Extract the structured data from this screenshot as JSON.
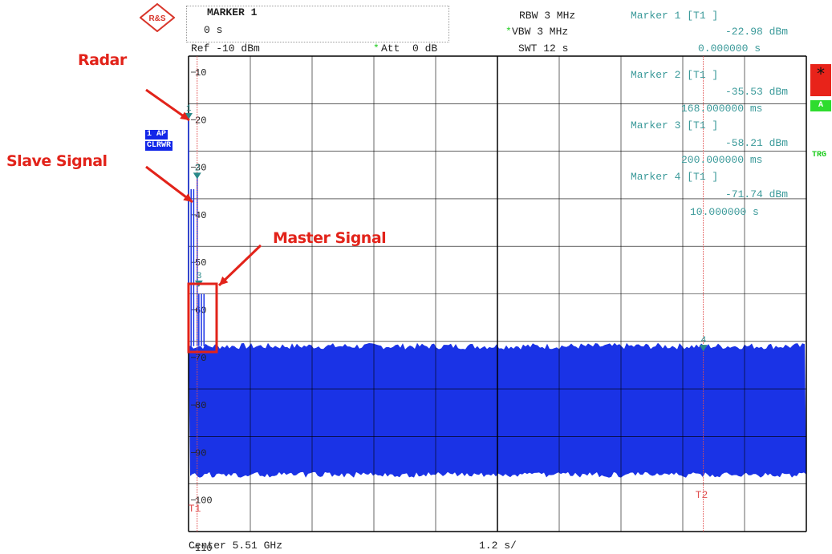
{
  "logo": {
    "text": "R&S",
    "icon": "rohde-schwarz-logo"
  },
  "marker_box": {
    "title": "MARKER 1",
    "value": "0 s"
  },
  "settings": {
    "rbw": "RBW 3 MHz",
    "vbw_star": "*",
    "vbw": "VBW 3 MHz",
    "swt": "SWT 12 s",
    "ref": "Ref -10 dBm",
    "att_star": "*",
    "att": "Att  0 dB"
  },
  "marker1_readout": {
    "label": "Marker 1 [T1 ]",
    "level": "-22.98 dBm",
    "time": "0.000000 s"
  },
  "marker_table": [
    {
      "label": "Marker 2 [T1 ]",
      "level": "-35.53 dBm",
      "time": "168.000000 ms"
    },
    {
      "label": "Marker 3 [T1 ]",
      "level": "-58.21 dBm",
      "time": "200.000000 ms"
    },
    {
      "label": "Marker 4 [T1 ]",
      "level": "-71.74 dBm",
      "time": "10.000000 s"
    }
  ],
  "side_badges": {
    "trace": "1 AP",
    "mode": "CLRWR"
  },
  "right_indicators": {
    "star": "*",
    "a": "A",
    "trg": "TRG"
  },
  "callouts": {
    "radar": "Radar",
    "slave": "Slave Signal",
    "master": "Master Signal"
  },
  "footer": {
    "center": "Center 5.51 GHz",
    "div": "1.2 s/"
  },
  "colors": {
    "trace": "#1a33e6",
    "marker_text": "#3b9a9a",
    "callout": "#e2231a",
    "marker_line": "#e05050",
    "grid": "#000000"
  },
  "chart_data": {
    "type": "line",
    "ylim": [
      -110,
      -10
    ],
    "xlim": [
      0,
      12
    ],
    "y_ticks": [
      "10",
      "20",
      "30",
      "40",
      "50",
      "60",
      "70",
      "80",
      "90",
      "100",
      "110"
    ],
    "x_unit_per_div": "1.2 s/",
    "noise_floor": {
      "top": -71,
      "bottom": -98
    },
    "series": [
      {
        "values": [
          {
            "x": 0.0,
            "y": -22.98
          },
          {
            "x": 0.168,
            "y": -35.53
          },
          {
            "x": 0.2,
            "y": -58.21
          },
          {
            "x": 10.0,
            "y": -71.74
          }
        ]
      }
    ],
    "markers": [
      {
        "id": "1",
        "x": 0.0,
        "y": -22.98
      },
      {
        "id": "2",
        "x": 0.168,
        "y": -35.53
      },
      {
        "id": "3",
        "x": 0.2,
        "y": -58.21
      },
      {
        "id": "4",
        "x": 10.0,
        "y": -71.74
      }
    ],
    "vertical_lines": [
      {
        "label": "T1",
        "x": 0.168
      },
      {
        "label": "T2",
        "x": 10.0
      }
    ]
  }
}
